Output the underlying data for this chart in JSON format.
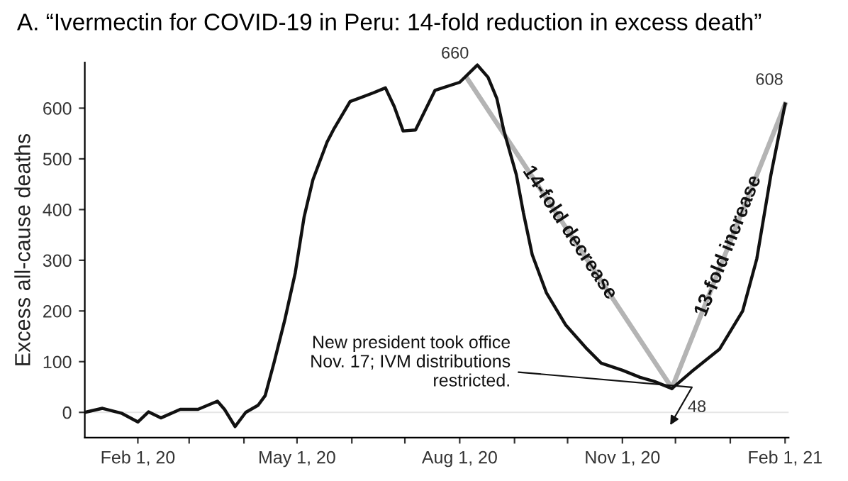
{
  "chart_data": {
    "type": "line",
    "title": "A. “Ivermectin for COVID-19 in Peru: 14-fold reduction in excess death”",
    "ylabel": "Excess all-cause deaths",
    "series": [
      {
        "color": "#111111",
        "x": [
          "2020-01-02",
          "2020-01-12",
          "2020-01-23",
          "2020-02-01",
          "2020-02-07",
          "2020-02-14",
          "2020-02-25",
          "2020-03-06",
          "2020-03-17",
          "2020-03-21",
          "2020-03-27",
          "2020-04-02",
          "2020-04-09",
          "2020-04-13",
          "2020-04-18",
          "2020-04-24",
          "2020-04-30",
          "2020-05-05",
          "2020-05-10",
          "2020-05-18",
          "2020-05-22",
          "2020-05-31",
          "2020-06-13",
          "2020-06-20",
          "2020-06-25",
          "2020-06-30",
          "2020-07-07",
          "2020-07-18",
          "2020-08-01",
          "2020-08-11",
          "2020-08-17",
          "2020-08-22",
          "2020-08-26",
          "2020-09-02",
          "2020-09-06",
          "2020-09-11",
          "2020-09-19",
          "2020-09-30",
          "2020-10-12",
          "2020-10-20",
          "2020-11-01",
          "2020-11-11",
          "2020-11-19",
          "2020-11-29",
          "2020-12-10",
          "2020-12-26",
          "2021-01-08",
          "2021-01-16",
          "2021-01-24",
          "2021-02-01"
        ],
        "values": [
          0,
          8,
          -2,
          -19,
          1,
          -11,
          6,
          6,
          22,
          6,
          -28,
          0,
          14,
          33,
          98,
          181,
          275,
          385,
          459,
          533,
          560,
          613,
          630,
          640,
          603,
          555,
          557,
          635,
          651,
          685,
          661,
          619,
          555,
          469,
          394,
          311,
          236,
          172,
          125,
          97,
          83,
          69,
          61,
          47,
          80,
          125,
          200,
          303,
          469,
          608
        ]
      },
      {
        "color": "#b4b4b4",
        "x": [
          "2020-08-05",
          "2020-11-29",
          "2021-02-01"
        ],
        "values": [
          660,
          48,
          608
        ]
      }
    ],
    "xlim": [
      "2020-01-02",
      "2021-02-03"
    ],
    "xticks": [
      {
        "value": "2020-02-01",
        "label": "Feb 1, 20"
      },
      {
        "value": "2020-03-01",
        "label": null
      },
      {
        "value": "2020-04-01",
        "label": null
      },
      {
        "value": "2020-05-01",
        "label": "May 1, 20"
      },
      {
        "value": "2020-06-01",
        "label": null
      },
      {
        "value": "2020-07-01",
        "label": null
      },
      {
        "value": "2020-08-01",
        "label": "Aug 1, 20"
      },
      {
        "value": "2020-09-01",
        "label": null
      },
      {
        "value": "2020-10-01",
        "label": null
      },
      {
        "value": "2020-11-01",
        "label": "Nov 1, 20"
      },
      {
        "value": "2020-12-01",
        "label": null
      },
      {
        "value": "2021-01-01",
        "label": null
      },
      {
        "value": "2021-02-01",
        "label": "Feb 1, 21"
      }
    ],
    "ylim": [
      -50,
      690
    ],
    "yticks": [
      0,
      100,
      200,
      300,
      400,
      500,
      600
    ],
    "ref_lines": [
      {
        "axis": "y",
        "value": 0,
        "color": "#e6e6e6"
      }
    ],
    "grid": false,
    "legend": false,
    "annotations": [
      {
        "text": "660",
        "x": "2020-08-05",
        "y": 660
      },
      {
        "text": "48",
        "x": "2020-11-29",
        "y": 48
      },
      {
        "text": "608",
        "x": "2021-02-01",
        "y": 608
      },
      {
        "text": "14-fold decrease",
        "x": "2020-10-02",
        "y": 354
      },
      {
        "text": "13-fold increase",
        "x": "2020-12-31",
        "y": 328
      },
      "New president took office\nNov. 17; IVM distributions\nrestricted."
    ]
  }
}
